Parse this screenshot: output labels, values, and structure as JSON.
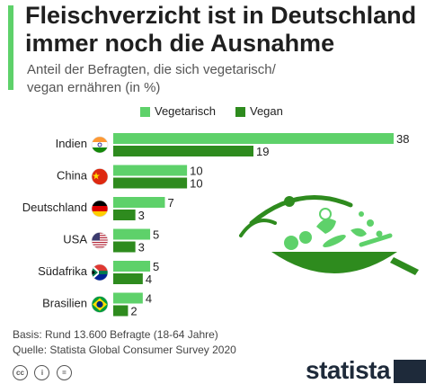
{
  "header": {
    "title_line1": "Fleischverzicht ist in Deutschland",
    "title_line2": "immer noch die Ausnahme",
    "subtitle_line1": "Anteil der Befragten, die sich vegetarisch/",
    "subtitle_line2": "vegan ernähren (in %)"
  },
  "legend": {
    "vegetarian_label": "Vegetarisch",
    "vegan_label": "Vegan"
  },
  "colors": {
    "vegetarian": "#5ed16a",
    "vegan": "#2e8b1e",
    "accent": "#5ed16a"
  },
  "chart_data": {
    "type": "bar",
    "orientation": "horizontal",
    "title": "Fleischverzicht ist in Deutschland immer noch die Ausnahme",
    "subtitle": "Anteil der Befragten, die sich vegetarisch/ vegan ernähren (in %)",
    "categories": [
      "Indien",
      "China",
      "Deutschland",
      "USA",
      "Südafrika",
      "Brasilien"
    ],
    "flags": [
      "flag-india-icon",
      "flag-china-icon",
      "flag-germany-icon",
      "flag-usa-icon",
      "flag-south-africa-icon",
      "flag-brazil-icon"
    ],
    "series": [
      {
        "name": "Vegetarisch",
        "values": [
          38,
          10,
          7,
          5,
          5,
          4
        ]
      },
      {
        "name": "Vegan",
        "values": [
          19,
          10,
          3,
          3,
          4,
          2
        ]
      }
    ],
    "xlim": [
      0,
      38
    ],
    "grid": false,
    "legend_position": "top-right",
    "data_labels": true
  },
  "footer": {
    "basis": "Basis: Rund 13.600 Befragte (18-64 Jahre)",
    "source": "Quelle: Statista Global Consumer Survey 2020"
  },
  "brand": {
    "name": "statista"
  },
  "icons": {
    "license": [
      "cc-icon",
      "by-icon",
      "equals-icon"
    ],
    "illustration": "vegetable-pan-icon"
  }
}
